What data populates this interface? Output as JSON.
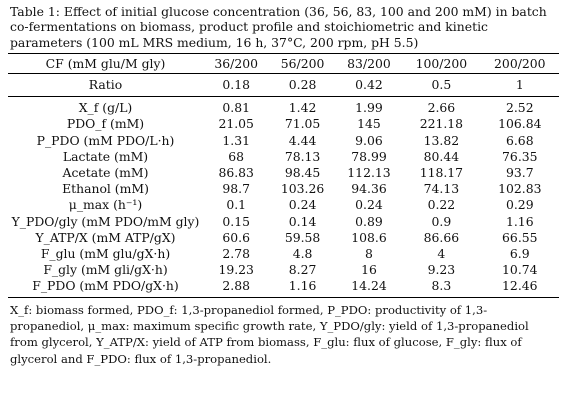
{
  "caption": {
    "label": "Table 1:",
    "text": "Effect of initial glucose concentration (36, 56, 83, 100 and 200 mM) in batch co-fermentations on biomass, product profile and stoichiometric and kinetic parameters (100 mL MRS medium, 16 h, 37°C, 200 rpm, pH 5.5)"
  },
  "table": {
    "header": [
      "CF (mM glu/M gly)",
      "36/200",
      "56/200",
      "83/200",
      "100/200",
      "200/200"
    ],
    "ratio_row": {
      "label": "Ratio",
      "values": [
        "0.18",
        "0.28",
        "0.42",
        "0.5",
        "1"
      ]
    },
    "rows": [
      {
        "label": "X_f (g/L)",
        "values": [
          "0.81",
          "1.42",
          "1.99",
          "2.66",
          "2.52"
        ]
      },
      {
        "label": "PDO_f (mM)",
        "values": [
          "21.05",
          "71.05",
          "145",
          "221.18",
          "106.84"
        ]
      },
      {
        "label": "P_PDO (mM PDO/L·h)",
        "values": [
          "1.31",
          "4.44",
          "9.06",
          "13.82",
          "6.68"
        ]
      },
      {
        "label": "Lactate (mM)",
        "values": [
          "68",
          "78.13",
          "78.99",
          "80.44",
          "76.35"
        ]
      },
      {
        "label": "Acetate (mM)",
        "values": [
          "86.83",
          "98.45",
          "112.13",
          "118.17",
          "93.7"
        ]
      },
      {
        "label": "Ethanol (mM)",
        "values": [
          "98.7",
          "103.26",
          "94.36",
          "74.13",
          "102.83"
        ]
      },
      {
        "label": "μ_max (h⁻¹)",
        "values": [
          "0.1",
          "0.24",
          "0.24",
          "0.22",
          "0.29"
        ]
      },
      {
        "label": "Y_PDO/gly (mM PDO/mM gly)",
        "values": [
          "0.15",
          "0.14",
          "0.89",
          "0.9",
          "1.16"
        ]
      },
      {
        "label": "Y_ATP/X (mM ATP/gX)",
        "values": [
          "60.6",
          "59.58",
          "108.6",
          "86.66",
          "66.55"
        ]
      },
      {
        "label": "F_glu (mM glu/gX·h)",
        "values": [
          "2.78",
          "4.8",
          "8",
          "4",
          "6.9"
        ]
      },
      {
        "label": "F_gly (mM gli/gX·h)",
        "values": [
          "19.23",
          "8.27",
          "16",
          "9.23",
          "10.74"
        ]
      },
      {
        "label": "F_PDO (mM PDO/gX·h)",
        "values": [
          "2.88",
          "1.16",
          "14.24",
          "8.3",
          "12.46"
        ]
      }
    ]
  },
  "footnote": "X_f: biomass formed, PDO_f: 1,3-propanediol formed, P_PDO: productivity of 1,3-propanediol, μ_max: maximum specific growth rate, Y_PDO/gly: yield of 1,3-propanediol from glycerol, Y_ATP/X: yield of ATP from biomass, F_glu: flux of glucose, F_gly: flux of glycerol and F_PDO: flux of 1,3-propanediol."
}
